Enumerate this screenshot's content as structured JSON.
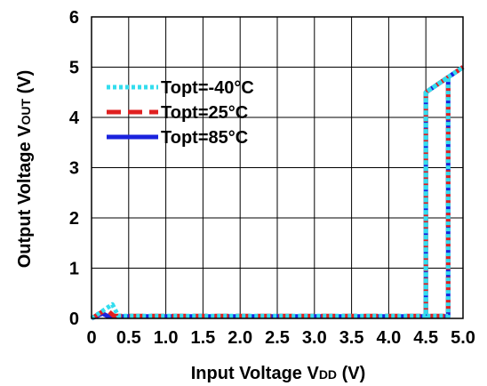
{
  "chart_data": {
    "type": "line",
    "xlabel_main": "Input Voltage V",
    "xlabel_sub": "DD",
    "xlabel_unit": " (V)",
    "ylabel_main": "Output Voltage V",
    "ylabel_sub": "OUT",
    "ylabel_unit": " (V)",
    "xlim": [
      0,
      5.0
    ],
    "ylim": [
      0,
      6
    ],
    "xticks": [
      "0",
      "0.5",
      "1.0",
      "1.5",
      "2.0",
      "2.5",
      "3.0",
      "3.5",
      "4.0",
      "4.5",
      "5.0"
    ],
    "yticks": [
      "0",
      "1",
      "2",
      "3",
      "4",
      "5",
      "6"
    ],
    "grid": true,
    "legend_position": "top-left",
    "series": [
      {
        "name": "Topt=-40°C",
        "color": "#33ddee",
        "dash": "dotted",
        "points": [
          [
            0,
            0
          ],
          [
            0.28,
            0.28
          ],
          [
            0.36,
            0.05
          ],
          [
            4.5,
            0.05
          ],
          [
            4.5,
            4.5
          ],
          [
            4.8,
            4.8
          ],
          [
            4.8,
            0.05
          ],
          [
            4.5,
            0.05
          ],
          [
            4.5,
            4.5
          ],
          [
            5.0,
            5.0
          ]
        ]
      },
      {
        "name": "Topt=25°C",
        "color": "#e02020",
        "dash": "dashed",
        "points": [
          [
            0,
            0
          ],
          [
            0.2,
            0.18
          ],
          [
            0.3,
            0.05
          ],
          [
            4.5,
            0.05
          ],
          [
            4.5,
            4.5
          ],
          [
            4.8,
            4.8
          ],
          [
            4.8,
            0.05
          ],
          [
            4.5,
            0.05
          ],
          [
            4.5,
            4.5
          ],
          [
            5.0,
            5.0
          ]
        ]
      },
      {
        "name": "Topt=85°C",
        "color": "#1a22dd",
        "dash": "solid",
        "points": [
          [
            0,
            0
          ],
          [
            0.15,
            0.1
          ],
          [
            0.22,
            0.04
          ],
          [
            4.5,
            0.04
          ],
          [
            4.5,
            4.5
          ],
          [
            4.8,
            4.8
          ],
          [
            4.8,
            0.04
          ],
          [
            4.5,
            0.04
          ],
          [
            4.5,
            4.5
          ],
          [
            5.0,
            5.0
          ]
        ]
      }
    ]
  }
}
